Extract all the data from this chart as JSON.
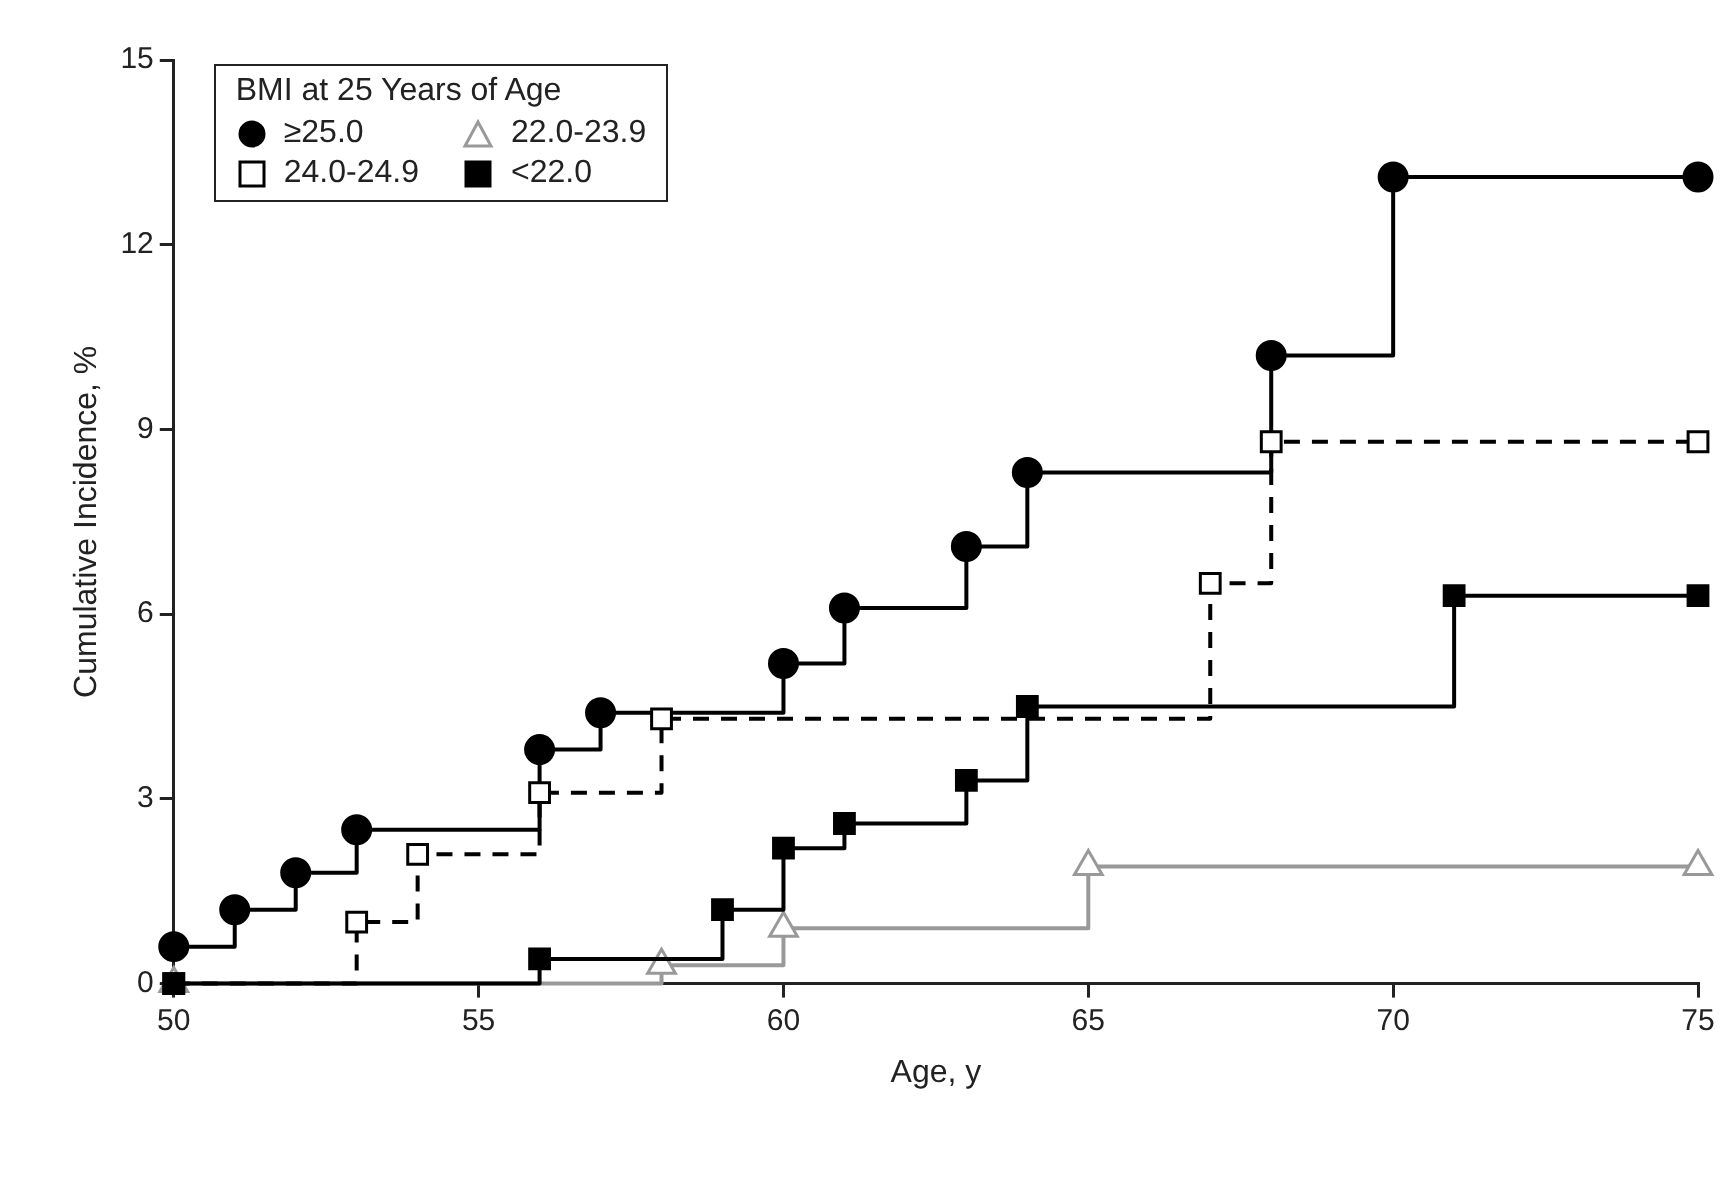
{
  "chart_data": {
    "type": "step",
    "xlabel": "Age, y",
    "ylabel": "Cumulative Incidence, %",
    "legend_title": "BMI at 25 Years of Age",
    "legend": "top left",
    "grid": false,
    "xlim": [
      50,
      75
    ],
    "xticks": [
      50,
      55,
      60,
      65,
      70,
      75
    ],
    "ylim": [
      0,
      15
    ],
    "yticks": [
      0,
      3,
      6,
      9,
      12,
      15
    ],
    "series": [
      {
        "name": "≥25.0",
        "color": "#000000",
        "marker": "circle",
        "line_style": "solid",
        "x": [
          50,
          51,
          52,
          53,
          56,
          57,
          60,
          61,
          63,
          64,
          68,
          70,
          75
        ],
        "values": [
          0.6,
          1.2,
          1.8,
          2.5,
          3.8,
          4.4,
          5.2,
          6.1,
          7.1,
          8.3,
          10.2,
          13.1,
          13.1
        ]
      },
      {
        "name": "22.0-23.9",
        "color": "#999999",
        "marker": "triangle",
        "line_style": "solid",
        "x": [
          50,
          58,
          60,
          65,
          75
        ],
        "values": [
          0,
          0.3,
          0.9,
          1.9,
          1.9
        ]
      },
      {
        "name": "24.0-24.9",
        "color": "#000000",
        "marker": "square",
        "line_style": "dashed",
        "x": [
          50,
          53,
          54,
          56,
          58,
          67,
          68,
          75
        ],
        "values": [
          0,
          1.0,
          2.1,
          3.1,
          4.3,
          6.5,
          8.8,
          8.8
        ]
      },
      {
        "name": "<22.0",
        "color": "#000000",
        "marker": "square",
        "line_style": "solid",
        "x": [
          50,
          56,
          59,
          60,
          61,
          63,
          64,
          71,
          75
        ],
        "values": [
          0,
          0.4,
          1.2,
          2.2,
          2.6,
          3.3,
          4.5,
          6.3,
          6.3
        ]
      }
    ]
  }
}
